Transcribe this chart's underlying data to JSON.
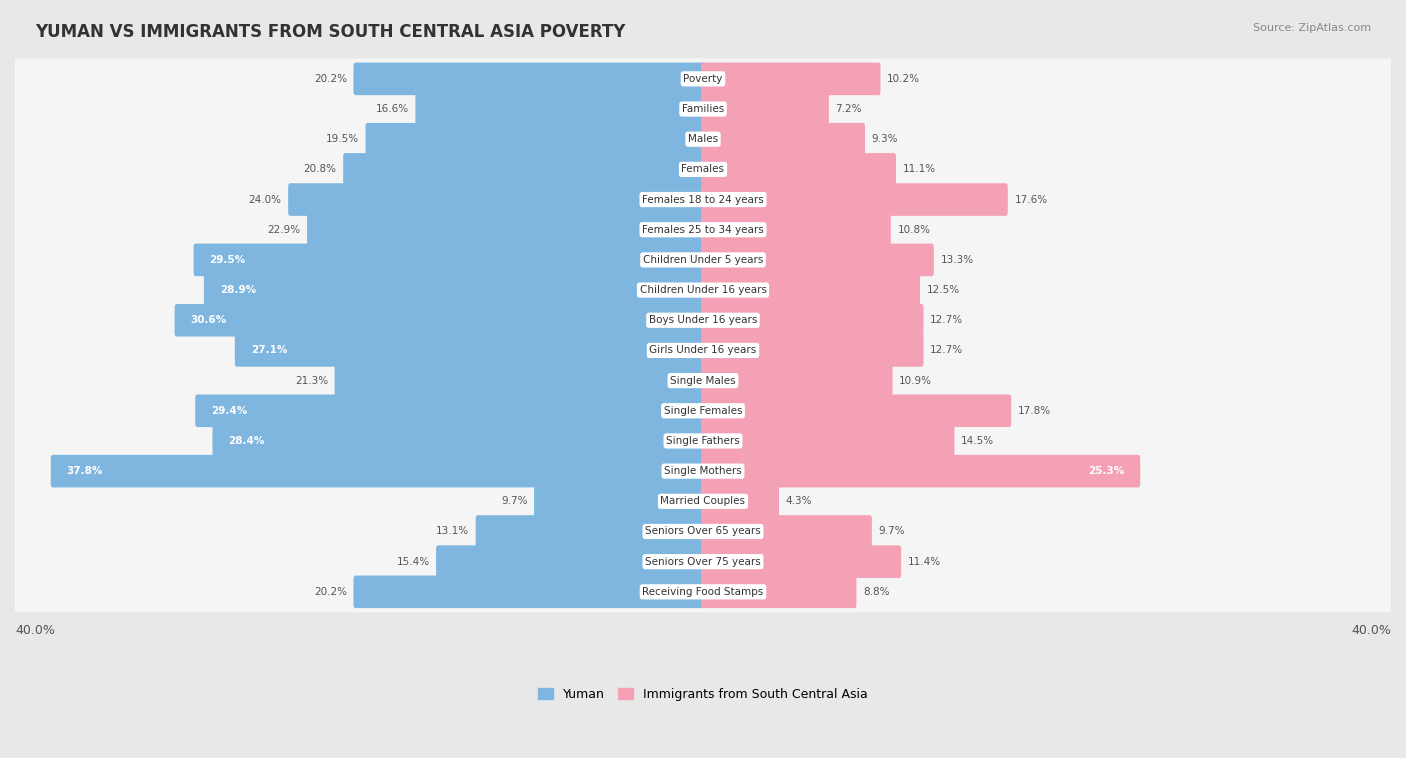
{
  "title": "YUMAN VS IMMIGRANTS FROM SOUTH CENTRAL ASIA POVERTY",
  "source": "Source: ZipAtlas.com",
  "categories": [
    "Poverty",
    "Families",
    "Males",
    "Females",
    "Females 18 to 24 years",
    "Females 25 to 34 years",
    "Children Under 5 years",
    "Children Under 16 years",
    "Boys Under 16 years",
    "Girls Under 16 years",
    "Single Males",
    "Single Females",
    "Single Fathers",
    "Single Mothers",
    "Married Couples",
    "Seniors Over 65 years",
    "Seniors Over 75 years",
    "Receiving Food Stamps"
  ],
  "yuman_values": [
    20.2,
    16.6,
    19.5,
    20.8,
    24.0,
    22.9,
    29.5,
    28.9,
    30.6,
    27.1,
    21.3,
    29.4,
    28.4,
    37.8,
    9.7,
    13.1,
    15.4,
    20.2
  ],
  "immigrant_values": [
    10.2,
    7.2,
    9.3,
    11.1,
    17.6,
    10.8,
    13.3,
    12.5,
    12.7,
    12.7,
    10.9,
    17.8,
    14.5,
    25.3,
    4.3,
    9.7,
    11.4,
    8.8
  ],
  "yuman_color": "#7EB6E0",
  "immigrant_color": "#F4A0B5",
  "yuman_label": "Yuman",
  "immigrant_label": "Immigrants from South Central Asia",
  "axis_max": 40.0,
  "background_color": "#e8e8e8",
  "row_bg_color": "#f5f5f5",
  "value_text_color": "#555555",
  "value_text_white": "#ffffff",
  "white_threshold_yuman": 25.0,
  "white_threshold_imm": 22.0
}
